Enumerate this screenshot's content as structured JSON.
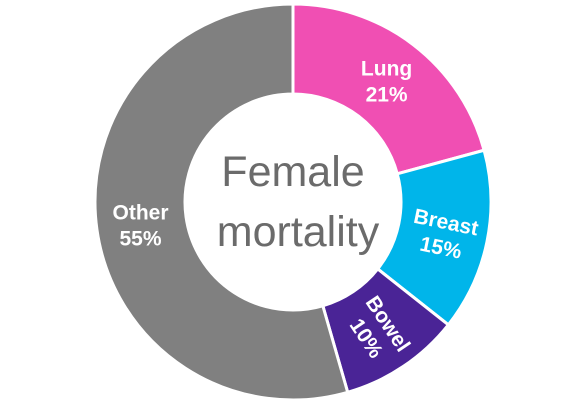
{
  "chart_data": {
    "type": "pie",
    "variant": "donut",
    "center_text": [
      "Female",
      "mortality"
    ],
    "slices": [
      {
        "name": "Lung",
        "value": 21,
        "value_label": "21%",
        "color": "#f04fb3"
      },
      {
        "name": "Breast",
        "value": 15,
        "value_label": "15%",
        "color": "#00b5ea"
      },
      {
        "name": "Bowel",
        "value": 10,
        "value_label": "10%",
        "color": "#4a2496"
      },
      {
        "name": "Other",
        "value": 55,
        "value_label": "55%",
        "color": "#808080"
      }
    ],
    "start_at": "top",
    "direction": "clockwise",
    "slice_separator_color": "#ffffff",
    "legend": "none"
  }
}
